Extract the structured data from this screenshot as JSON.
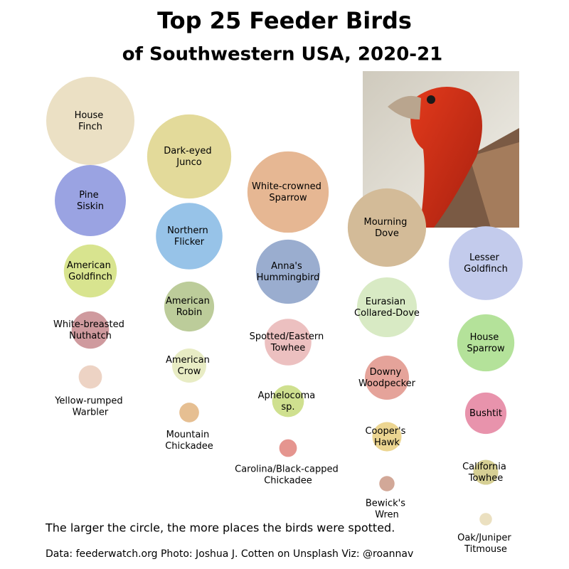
{
  "chart_data": {
    "type": "bubble",
    "title": "Top 25 Feeder Birds",
    "subtitle": "of Southwestern USA, 2020-21",
    "note": "The larger the circle, the more places the birds were spotted.",
    "source": "Data: feederwatch.org  Photo: Joshua J. Cotten on Unsplash  Viz: @roannav",
    "categories": [
      "House Finch",
      "Dark-eyed Junco",
      "White-crowned Sparrow",
      "Mourning Dove",
      "Lesser Goldfinch",
      "Pine Siskin",
      "Northern Flicker",
      "Anna's Hummingbird",
      "Eurasian Collared-Dove",
      "House Sparrow",
      "American Goldfinch",
      "American Robin",
      "Spotted/Eastern Towhee",
      "Downy Woodpecker",
      "Bushtit",
      "White-breasted Nuthatch",
      "American Crow",
      "Aphelocoma sp.",
      "Cooper's Hawk",
      "California Towhee",
      "Yellow-rumped Warbler",
      "Mountain Chickadee",
      "Carolina/Black-capped Chickadee",
      "Bewick's Wren",
      "Oak/Juniper Titmouse"
    ],
    "values": [
      100,
      91,
      85,
      79,
      70,
      65,
      57,
      53,
      46,
      42,
      36,
      32,
      28,
      25,
      22,
      18,
      15,
      13,
      11,
      8,
      7,
      5,
      4,
      3,
      2
    ],
    "colors": [
      "#ebe0c4",
      "#e3da9a",
      "#e6b793",
      "#d3bb98",
      "#c3cbec",
      "#9aa3e2",
      "#97c3e8",
      "#9aadcf",
      "#d8eac4",
      "#b4e29a",
      "#d8e48f",
      "#bccc9a",
      "#ecc0c0",
      "#e5a39a",
      "#e893ac",
      "#cf9a9e",
      "#e8ecc4",
      "#cfe08f",
      "#ecd591",
      "#d6cf94",
      "#edd3c4",
      "#e6bf92",
      "#e5958f",
      "#d2a898",
      "#ebe0c0"
    ]
  }
}
